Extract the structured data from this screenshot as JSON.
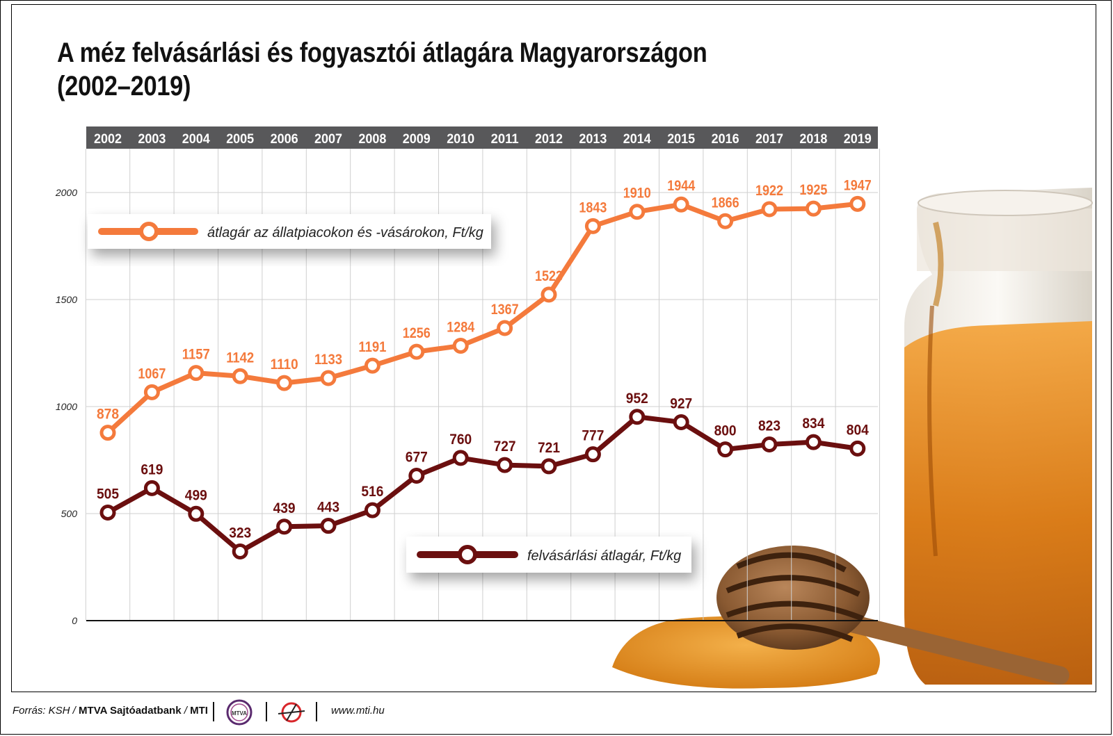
{
  "title_line1": "A méz felvásárlási és fogyasztói átlagára Magyarországon",
  "title_line2": "(2002–2019)",
  "footer": {
    "source_prefix": "Forrás: KSH / ",
    "source_bold": "MTVA Sajtóadatbank",
    "source_sep": " / ",
    "source_mti": "MTI",
    "logo1_text": "MTVA",
    "website": "www.mti.hu"
  },
  "colors": {
    "retail": "#f47a3c",
    "purchase": "#6b0f0f",
    "header_bar": "#58585a",
    "grid": "#cfcfcf"
  },
  "chart_data": {
    "type": "line",
    "x": [
      "2002",
      "2003",
      "2004",
      "2005",
      "2006",
      "2007",
      "2008",
      "2009",
      "2010",
      "2011",
      "2012",
      "2013",
      "2014",
      "2015",
      "2016",
      "2017",
      "2018",
      "2019"
    ],
    "ylim": [
      0,
      2000
    ],
    "yticks": [
      0,
      500,
      1000,
      1500,
      2000
    ],
    "grid": true,
    "series": [
      {
        "name": "átlagár az állatpiacokon és -vásárokon, Ft/kg",
        "values": [
          878,
          1067,
          1157,
          1142,
          1110,
          1133,
          1191,
          1256,
          1284,
          1367,
          1523,
          1843,
          1910,
          1944,
          1866,
          1922,
          1925,
          1947
        ]
      },
      {
        "name": "felvásárlási átlagár, Ft/kg",
        "values": [
          505,
          619,
          499,
          323,
          439,
          443,
          516,
          677,
          760,
          727,
          721,
          777,
          952,
          927,
          800,
          823,
          834,
          804
        ]
      }
    ]
  }
}
